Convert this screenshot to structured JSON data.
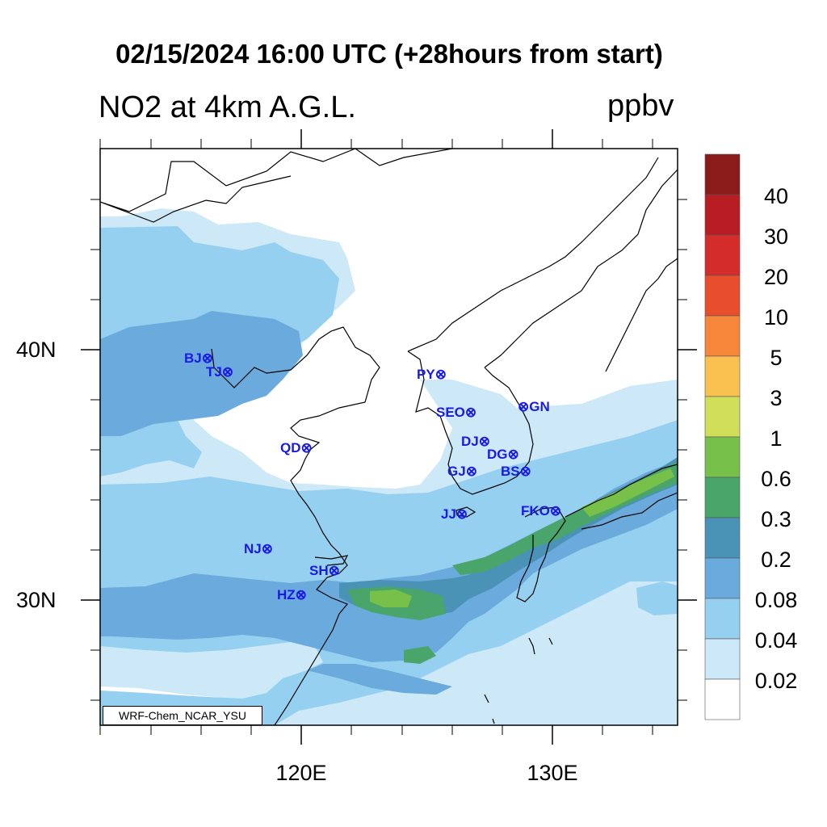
{
  "title": "02/15/2024 16:00 UTC (+28hours from start)",
  "field_label": "NO2 at 4km A.G.L.",
  "units": "ppbv",
  "lat_labels": [
    "40N",
    "30N"
  ],
  "lon_labels": [
    "120E",
    "130E"
  ],
  "colorbar": {
    "labels": [
      "40",
      "30",
      "20",
      "10",
      "5",
      "3",
      "1",
      "0.6",
      "0.3",
      "0.2",
      "0.08",
      "0.04",
      "0.02"
    ],
    "colors": [
      "#8b1a1a",
      "#b81d23",
      "#d42b2b",
      "#e84e2b",
      "#f5863a",
      "#f9c150",
      "#d1de5a",
      "#77c04a",
      "#4aa56a",
      "#4a92b6",
      "#6aaadc",
      "#96d0f0",
      "#cde9f8",
      "#ffffff"
    ]
  },
  "credit": "WRF-Chem_NCAR_YSU",
  "stations": [
    {
      "code": "BJ"
    },
    {
      "code": "TJ"
    },
    {
      "code": "QD"
    },
    {
      "code": "NJ"
    },
    {
      "code": "SH"
    },
    {
      "code": "HZ"
    },
    {
      "code": "PY"
    },
    {
      "code": "SEO"
    },
    {
      "code": "GN"
    },
    {
      "code": "DJ"
    },
    {
      "code": "DG"
    },
    {
      "code": "GJ"
    },
    {
      "code": "BS"
    },
    {
      "code": "JJ"
    },
    {
      "code": "FKO"
    }
  ]
}
